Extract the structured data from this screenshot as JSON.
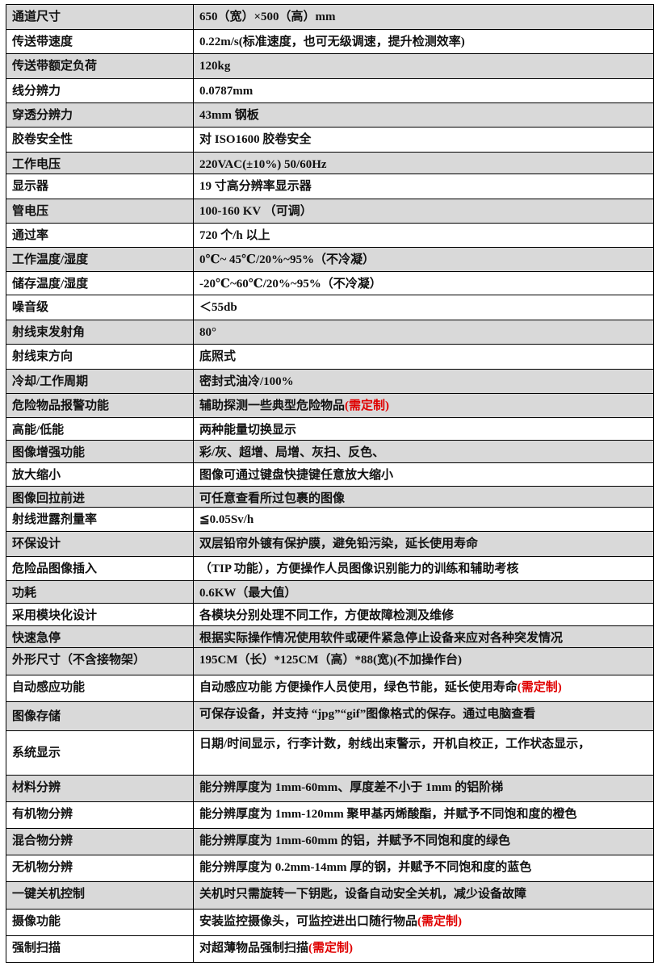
{
  "rows": [
    {
      "label": "通道尺寸",
      "value": "650（宽）×500（高）mm",
      "note": "",
      "shaded": true
    },
    {
      "label": "传送带速度",
      "value": "0.22m/s(标准速度，也可无级调速，提升检测效率)",
      "note": "",
      "shaded": false
    },
    {
      "label": "传送带额定负荷",
      "value": "120kg",
      "note": "",
      "shaded": true
    },
    {
      "label": "线分辨力",
      "value": "0.0787mm",
      "note": "",
      "shaded": false
    },
    {
      "label": "穿透分辨力",
      "value": "43mm 钢板",
      "note": "",
      "shaded": true
    },
    {
      "label": "胶卷安全性",
      "value": "对 ISO1600 胶卷安全",
      "note": "",
      "shaded": false
    },
    {
      "label": "工作电压",
      "value": "220VAC(±10%) 50/60Hz",
      "note": "",
      "shaded": true
    },
    {
      "label": "显示器",
      "value": "19 寸高分辨率显示器",
      "note": "",
      "shaded": false
    },
    {
      "label": "管电压",
      "value": "100-160 KV （可调）",
      "note": "",
      "shaded": true
    },
    {
      "label": "通过率",
      "value": "720 个/h 以上",
      "note": "",
      "shaded": false
    },
    {
      "label": "工作温度/湿度",
      "value": "0℃~ 45℃/20%~95%（不冷凝）",
      "note": "",
      "shaded": true
    },
    {
      "label": "储存温度/湿度",
      "value": "-20℃~60℃/20%~95%（不冷凝）",
      "note": "",
      "shaded": false
    },
    {
      "label": "噪音级",
      "value": "＜55db",
      "note": "",
      "shaded": false
    },
    {
      "label": "射线束发射角",
      "value": "80°",
      "note": "",
      "shaded": true
    },
    {
      "label": "射线束方向",
      "value": "底照式",
      "note": "",
      "shaded": false
    },
    {
      "label": "冷却/工作周期",
      "value": "密封式油冷/100%",
      "note": "",
      "shaded": true
    },
    {
      "label": "危险物品报警功能",
      "value": "辅助探测一些典型危险物品",
      "note": "(需定制)",
      "shaded": true
    },
    {
      "label": "高能/低能",
      "value": "两种能量切换显示",
      "note": "",
      "shaded": false
    },
    {
      "label": "图像增强功能",
      "value": "彩/灰、超增、局增、灰扫、反色、",
      "note": "",
      "shaded": true
    },
    {
      "label": "放大缩小",
      "value": "图像可通过键盘快捷键任意放大缩小",
      "note": "",
      "shaded": false
    },
    {
      "label": "图像回拉前进",
      "value": "可任意查看所过包裹的图像",
      "note": "",
      "shaded": true
    },
    {
      "label": "射线泄露剂量率",
      "value": "≦0.05Sv/h",
      "note": "",
      "shaded": false
    },
    {
      "label": "环保设计",
      "value": "双层铅帘外镀有保护膜，避免铅污染，延长使用寿命",
      "note": "",
      "shaded": true
    },
    {
      "label": "危险品图像插入",
      "value": "（TIP 功能），方便操作人员图像识别能力的训练和辅助考核",
      "note": "",
      "shaded": false
    },
    {
      "label": "功耗",
      "value": "0.6KW（最大值）",
      "note": "",
      "shaded": true
    },
    {
      "label": "采用模块化设计",
      "value": "各模块分别处理不同工作，方便故障检测及维修",
      "note": "",
      "shaded": false
    },
    {
      "label": "快速急停",
      "value": "根据实际操作情况使用软件或硬件紧急停止设备来应对各种突发情况",
      "note": "",
      "shaded": true
    },
    {
      "label": "外形尺寸（不含接物架）",
      "value": "195CM（长）*125CM（高）*88(宽)(不加操作台)",
      "note": "",
      "shaded": true
    },
    {
      "label": "自动感应功能",
      "value": "自动感应功能 方便操作人员使用，绿色节能，延长使用寿命",
      "note": "(需定制)",
      "shaded": false
    },
    {
      "label": "图像存储",
      "value": "可保存设备，并支持 “jpg”“gif”图像格式的保存。通过电脑查看",
      "note": "",
      "shaded": true
    },
    {
      "label": "系统显示",
      "value": "日期/时间显示，行李计数，射线出束警示，开机自校正，工作状态显示，",
      "note": "",
      "shaded": false
    },
    {
      "label": "材料分辨",
      "value": "能分辨厚度为 1mm-60mm、厚度差不小于 1mm 的铝阶梯",
      "note": "",
      "shaded": true
    },
    {
      "label": "有机物分辨",
      "value": "能分辨厚度为 1mm-120mm 聚甲基丙烯酸酯，并赋予不同饱和度的橙色",
      "note": "",
      "shaded": false
    },
    {
      "label": "混合物分辨",
      "value": "能分辨厚度为 1mm-60mm 的铝，并赋予不同饱和度的绿色",
      "note": "",
      "shaded": true
    },
    {
      "label": "无机物分辨",
      "value": "能分辨厚度为 0.2mm-14mm 厚的钢，并赋予不同饱和度的蓝色",
      "note": "",
      "shaded": false
    },
    {
      "label": "一键关机控制",
      "value": "关机时只需旋转一下钥匙，设备自动安全关机，减少设备故障",
      "note": "",
      "shaded": true
    },
    {
      "label": "摄像功能",
      "value": "安装监控摄像头，可监控进出口随行物品",
      "note": "(需定制)",
      "shaded": false
    },
    {
      "label": "强制扫描",
      "value": "对超薄物品强制扫描",
      "note": "(需定制)",
      "shaded": false
    }
  ]
}
